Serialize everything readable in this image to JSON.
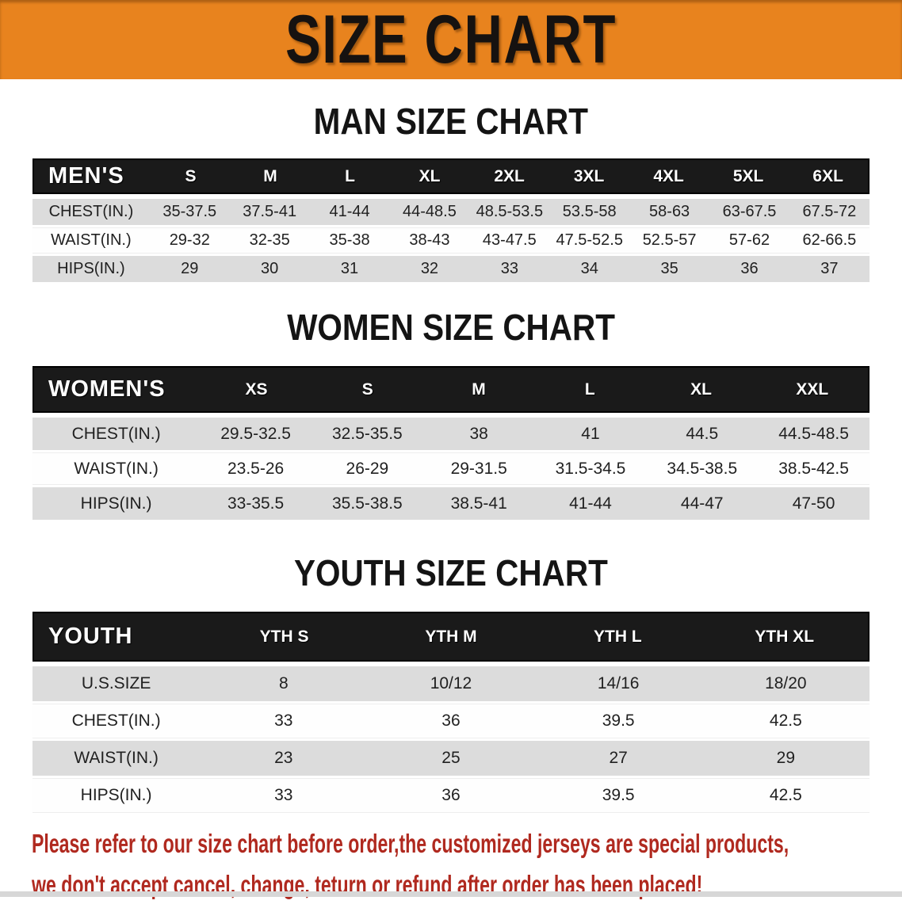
{
  "banner": {
    "title": "SIZE CHART"
  },
  "colors": {
    "banner_bg": "#e8831e",
    "header_bar_bg": "#1a1a1a",
    "gray_row": "#dcdcdc",
    "footer_text": "#b0291f"
  },
  "sections": [
    {
      "heading": "MAN SIZE CHART",
      "table": {
        "label": "MEN'S",
        "columns": [
          "S",
          "M",
          "L",
          "XL",
          "2XL",
          "3XL",
          "4XL",
          "5XL",
          "6XL"
        ],
        "rows": [
          {
            "label": "CHEST(IN.)",
            "values": [
              "35-37.5",
              "37.5-41",
              "41-44",
              "44-48.5",
              "48.5-53.5",
              "53.5-58",
              "58-63",
              "63-67.5",
              "67.5-72"
            ]
          },
          {
            "label": "WAIST(IN.)",
            "values": [
              "29-32",
              "32-35",
              "35-38",
              "38-43",
              "43-47.5",
              "47.5-52.5",
              "52.5-57",
              "57-62",
              "62-66.5"
            ]
          },
          {
            "label": "HIPS(IN.)",
            "values": [
              "29",
              "30",
              "31",
              "32",
              "33",
              "34",
              "35",
              "36",
              "37"
            ]
          }
        ]
      }
    },
    {
      "heading": "WOMEN SIZE CHART",
      "table": {
        "label": "WOMEN'S",
        "columns": [
          "XS",
          "S",
          "M",
          "L",
          "XL",
          "XXL"
        ],
        "rows": [
          {
            "label": "CHEST(IN.)",
            "values": [
              "29.5-32.5",
              "32.5-35.5",
              "38",
              "41",
              "44.5",
              "44.5-48.5"
            ]
          },
          {
            "label": "WAIST(IN.)",
            "values": [
              "23.5-26",
              "26-29",
              "29-31.5",
              "31.5-34.5",
              "34.5-38.5",
              "38.5-42.5"
            ]
          },
          {
            "label": "HIPS(IN.)",
            "values": [
              "33-35.5",
              "35.5-38.5",
              "38.5-41",
              "41-44",
              "44-47",
              "47-50"
            ]
          }
        ]
      }
    },
    {
      "heading": "YOUTH SIZE CHART",
      "table": {
        "label": "YOUTH",
        "columns": [
          "YTH S",
          "YTH M",
          "YTH L",
          "YTH XL"
        ],
        "rows": [
          {
            "label": "U.S.SIZE",
            "values": [
              "8",
              "10/12",
              "14/16",
              "18/20"
            ]
          },
          {
            "label": "CHEST(IN.)",
            "values": [
              "33",
              "36",
              "39.5",
              "42.5"
            ]
          },
          {
            "label": "WAIST(IN.)",
            "values": [
              "23",
              "25",
              "27",
              "29"
            ]
          },
          {
            "label": "HIPS(IN.)",
            "values": [
              "33",
              "36",
              "39.5",
              "42.5"
            ]
          }
        ]
      }
    }
  ],
  "footer": {
    "line1": "Please refer to our size chart before order,the customized jerseys are special products,",
    "line2": "we don't accept cancel, change, teturn or refund after order has been placed!"
  }
}
